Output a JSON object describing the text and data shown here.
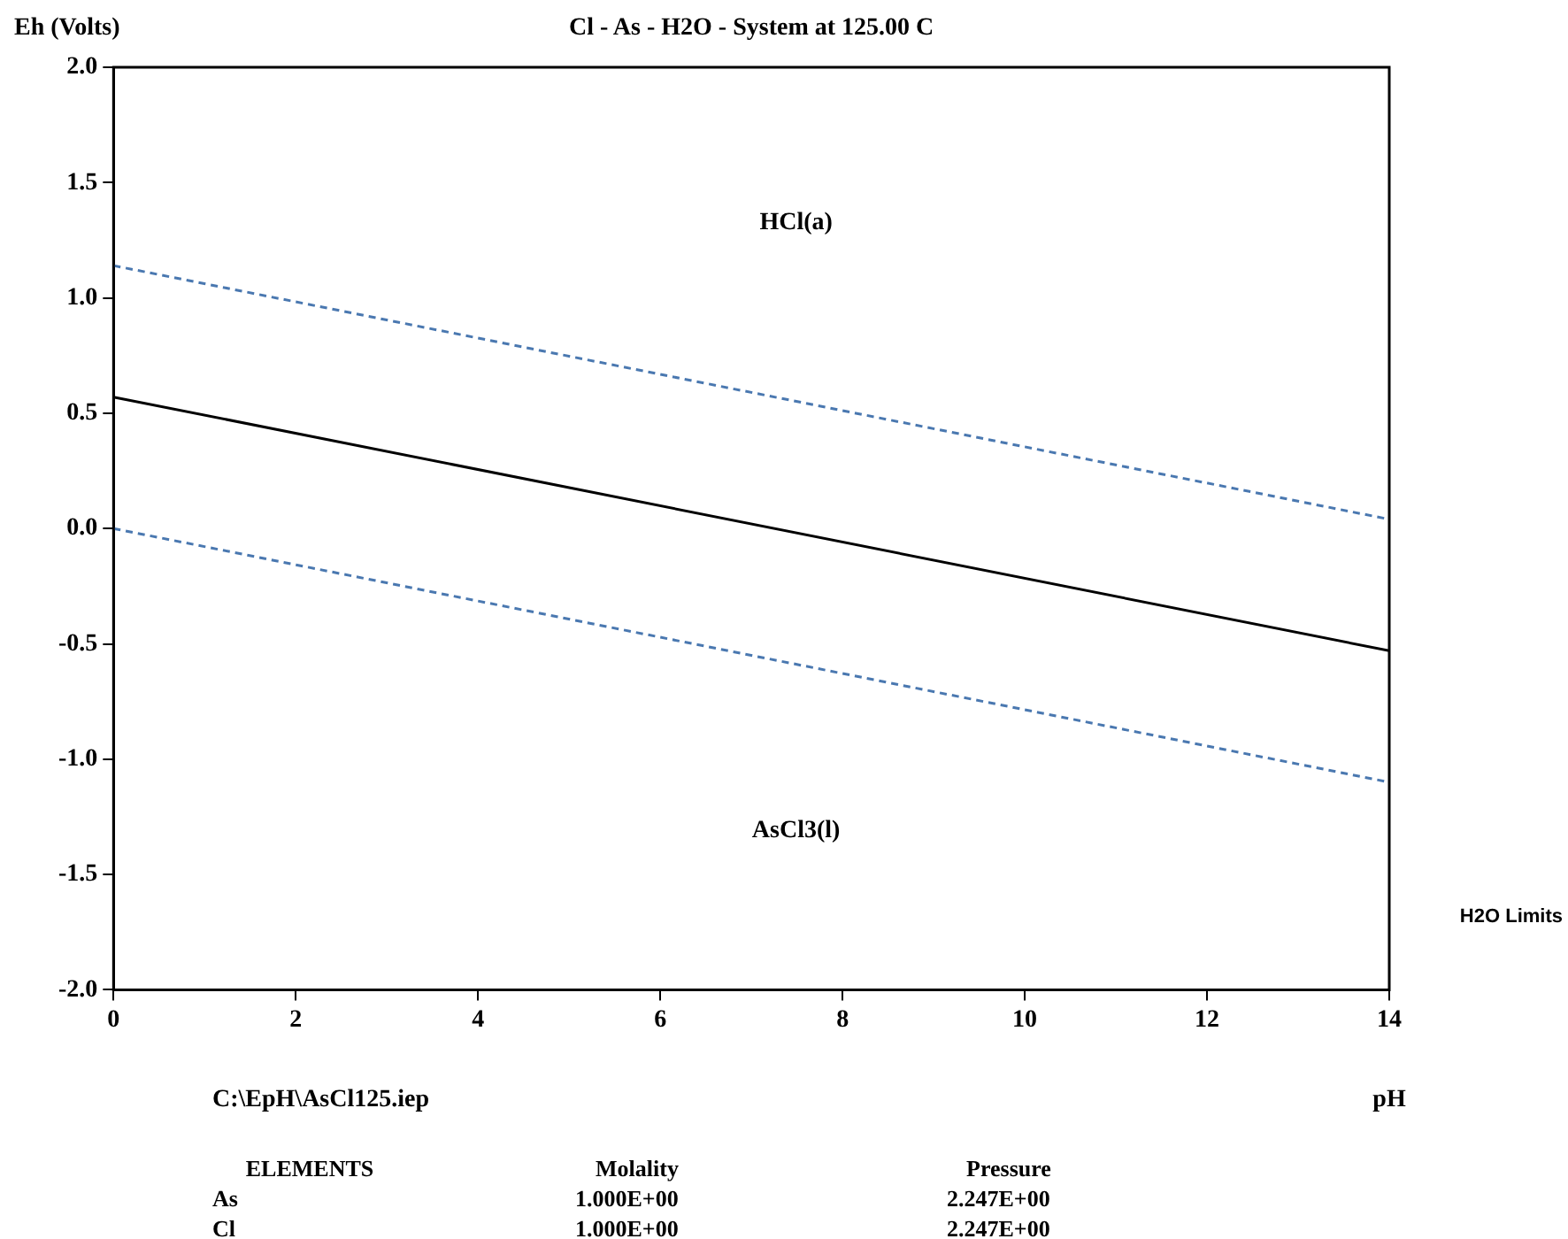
{
  "chart_data": {
    "type": "line",
    "title": "Cl - As - H2O - System at 125.00 C",
    "ylabel": "Eh (Volts)",
    "xlabel": "pH",
    "xlim": [
      0,
      14
    ],
    "xticks": [
      0,
      2,
      4,
      6,
      8,
      10,
      12,
      14
    ],
    "ylim": [
      -2,
      2
    ],
    "yticks": [
      {
        "value": -2,
        "label": "-2.0"
      },
      {
        "value": -1.5,
        "label": "-1.5"
      },
      {
        "value": -1,
        "label": "-1.0"
      },
      {
        "value": -0.5,
        "label": "-0.5"
      },
      {
        "value": 0,
        "label": "0.0"
      },
      {
        "value": 0.5,
        "label": "0.5"
      },
      {
        "value": 1,
        "label": "1.0"
      },
      {
        "value": 1.5,
        "label": "1.5"
      },
      {
        "value": 2,
        "label": "2.0"
      }
    ],
    "marker": "none",
    "x": [
      0,
      14
    ],
    "series": [
      {
        "color": "#000000",
        "line_style": "solid",
        "values": [
          0.57,
          -0.53
        ]
      },
      {
        "color": "#4a78b0",
        "line_style": "dashed",
        "values": [
          1.14,
          0.04
        ]
      },
      {
        "color": "#4a78b0",
        "line_style": "dashed",
        "values": [
          0,
          -1.1
        ]
      }
    ],
    "annotations": [
      "HCl(a)",
      "AsCl3(l)",
      "H2O Limits",
      "C:\\EpH\\AsCl125.iep",
      "ELEMENTS",
      "Molality",
      "Pressure",
      "As",
      "1.000E+00",
      "2.247E+00",
      "Cl",
      "1.000E+00",
      "2.247E+00"
    ]
  }
}
